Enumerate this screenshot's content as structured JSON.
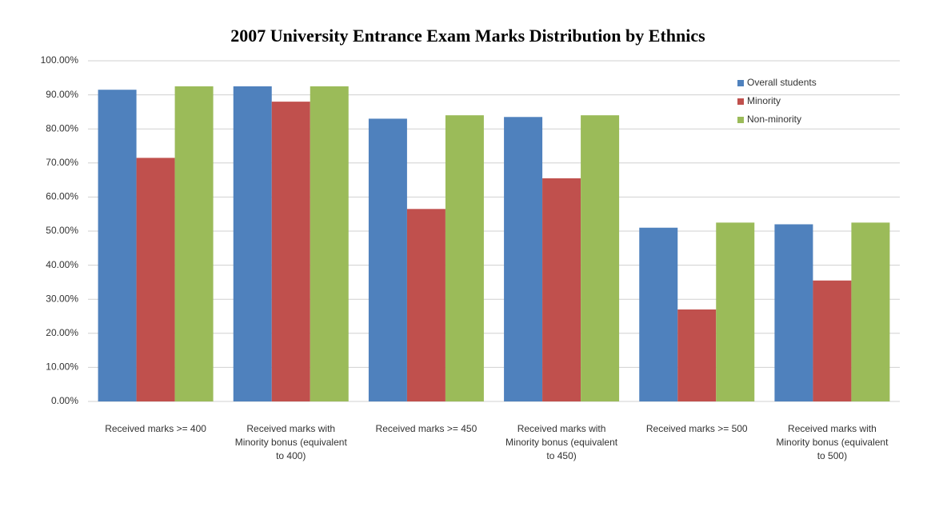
{
  "chart_data": {
    "type": "bar",
    "title": "2007 University Entrance Exam Marks Distribution by Ethnics",
    "categories": [
      "Received marks >= 400",
      "Received marks with Minority bonus (equivalent to 400)",
      "Received marks >= 450",
      "Received marks with Minority bonus (equivalent to 450)",
      "Received marks >= 500",
      "Received marks with Minority bonus (equivalent to 500)"
    ],
    "series": [
      {
        "name": "Overall students",
        "color": "#4f81bd",
        "values": [
          91.5,
          92.5,
          83,
          83.5,
          51,
          52
        ]
      },
      {
        "name": "Minority",
        "color": "#c0504d",
        "values": [
          71.5,
          88,
          56.5,
          65.5,
          27,
          35.5
        ]
      },
      {
        "name": "Non-minority",
        "color": "#9bbb59",
        "values": [
          92.5,
          92.5,
          84,
          84,
          52.5,
          52.5
        ]
      }
    ],
    "ylim": [
      0,
      100
    ],
    "yticks": [
      {
        "value": 0,
        "label": "0.00%"
      },
      {
        "value": 10,
        "label": "10.00%"
      },
      {
        "value": 20,
        "label": "20.00%"
      },
      {
        "value": 30,
        "label": "30.00%"
      },
      {
        "value": 40,
        "label": "40.00%"
      },
      {
        "value": 50,
        "label": "50.00%"
      },
      {
        "value": 60,
        "label": "60.00%"
      },
      {
        "value": 70,
        "label": "70.00%"
      },
      {
        "value": 80,
        "label": "80.00%"
      },
      {
        "value": 90,
        "label": "90.00%"
      },
      {
        "value": 100,
        "label": "100.00%"
      }
    ],
    "grid": true,
    "legend": "top-right"
  }
}
